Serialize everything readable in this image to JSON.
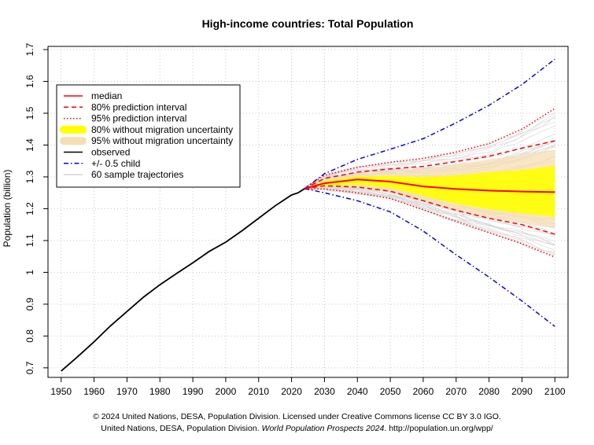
{
  "chart_data": {
    "type": "line",
    "title": "High-income countries: Total Population",
    "xlabel": "",
    "ylabel": "Population (billion)",
    "xlim": [
      1946,
      2104
    ],
    "ylim": [
      0.67,
      1.71
    ],
    "x_ticks": [
      1950,
      1960,
      1970,
      1980,
      1990,
      2000,
      2010,
      2020,
      2030,
      2040,
      2050,
      2060,
      2070,
      2080,
      2090,
      2100
    ],
    "y_ticks": [
      0.7,
      0.8,
      0.9,
      1.0,
      1.1,
      1.2,
      1.3,
      1.4,
      1.5,
      1.6,
      1.7
    ],
    "y_tick_labels": [
      "0.7",
      "0.8",
      "0.9",
      "1",
      "1.1",
      "1.2",
      "1.3",
      "1.4",
      "1.5",
      "1.6",
      "1.7"
    ],
    "grid": true,
    "legend_position": "top-left",
    "legend": [
      {
        "label": "median",
        "color": "#ff0000",
        "style": "solid"
      },
      {
        "label": "80% prediction interval",
        "color": "#ff0000",
        "style": "dashed"
      },
      {
        "label": "95% prediction interval",
        "color": "#ff0000",
        "style": "dotted"
      },
      {
        "label": "80% without migration uncertainty",
        "color": "#ffff00",
        "style": "band"
      },
      {
        "label": "95% without migration uncertainty",
        "color": "#f5deb3",
        "style": "band"
      },
      {
        "label": "observed",
        "color": "#000000",
        "style": "solid"
      },
      {
        "label": "+/- 0.5 child",
        "color": "#0000ff",
        "style": "dotdash"
      },
      {
        "label": "60 sample trajectories",
        "color": "#d3d3d3",
        "style": "thin"
      }
    ],
    "series": [
      {
        "name": "observed",
        "x": [
          1950,
          1955,
          1960,
          1965,
          1970,
          1975,
          1980,
          1985,
          1990,
          1995,
          2000,
          2005,
          2010,
          2015,
          2020,
          2022,
          2024
        ],
        "values": [
          0.69,
          0.735,
          0.782,
          0.832,
          0.877,
          0.922,
          0.961,
          0.996,
          1.03,
          1.066,
          1.095,
          1.131,
          1.17,
          1.209,
          1.243,
          1.25,
          1.263
        ]
      },
      {
        "name": "median",
        "x": [
          2024,
          2030,
          2040,
          2050,
          2060,
          2070,
          2080,
          2090,
          2100
        ],
        "values": [
          1.263,
          1.28,
          1.292,
          1.285,
          1.27,
          1.262,
          1.257,
          1.254,
          1.252
        ]
      },
      {
        "name": "80% prediction interval upper",
        "x": [
          2024,
          2030,
          2040,
          2050,
          2060,
          2070,
          2080,
          2090,
          2100
        ],
        "values": [
          1.263,
          1.295,
          1.315,
          1.325,
          1.333,
          1.348,
          1.365,
          1.39,
          1.413
        ]
      },
      {
        "name": "80% prediction interval lower",
        "x": [
          2024,
          2030,
          2040,
          2050,
          2060,
          2070,
          2080,
          2090,
          2100
        ],
        "values": [
          1.263,
          1.272,
          1.268,
          1.255,
          1.225,
          1.195,
          1.17,
          1.15,
          1.12
        ]
      },
      {
        "name": "95% prediction interval upper",
        "x": [
          2024,
          2030,
          2040,
          2050,
          2060,
          2070,
          2080,
          2090,
          2100
        ],
        "values": [
          1.263,
          1.305,
          1.33,
          1.346,
          1.358,
          1.378,
          1.405,
          1.45,
          1.515
        ]
      },
      {
        "name": "95% prediction interval lower",
        "x": [
          2024,
          2030,
          2040,
          2050,
          2060,
          2070,
          2080,
          2090,
          2100
        ],
        "values": [
          1.263,
          1.262,
          1.25,
          1.232,
          1.197,
          1.16,
          1.125,
          1.09,
          1.048
        ]
      },
      {
        "name": "+/- 0.5 child upper",
        "x": [
          2024,
          2030,
          2040,
          2050,
          2060,
          2070,
          2080,
          2090,
          2100
        ],
        "values": [
          1.263,
          1.31,
          1.355,
          1.387,
          1.42,
          1.47,
          1.525,
          1.59,
          1.67
        ]
      },
      {
        "name": "+/- 0.5 child lower",
        "x": [
          2024,
          2030,
          2040,
          2050,
          2060,
          2070,
          2080,
          2090,
          2100
        ],
        "values": [
          1.263,
          1.25,
          1.225,
          1.19,
          1.13,
          1.055,
          0.985,
          0.91,
          0.83
        ]
      },
      {
        "name": "95% without migration uncertainty",
        "x": [
          2024,
          2030,
          2040,
          2050,
          2060,
          2070,
          2080,
          2090,
          2100
        ],
        "upper": [
          1.263,
          1.292,
          1.31,
          1.318,
          1.325,
          1.34,
          1.355,
          1.37,
          1.385
        ],
        "lower": [
          1.263,
          1.268,
          1.266,
          1.252,
          1.222,
          1.192,
          1.17,
          1.155,
          1.14
        ]
      },
      {
        "name": "80% without migration uncertainty",
        "x": [
          2024,
          2030,
          2040,
          2050,
          2060,
          2070,
          2080,
          2090,
          2100
        ],
        "upper": [
          1.263,
          1.288,
          1.302,
          1.303,
          1.3,
          1.305,
          1.315,
          1.322,
          1.335
        ],
        "lower": [
          1.263,
          1.272,
          1.275,
          1.265,
          1.24,
          1.215,
          1.198,
          1.185,
          1.175
        ]
      }
    ]
  },
  "footer": {
    "line1": "© 2024 United Nations, DESA, Population Division. Licensed under Creative Commons license CC BY 3.0 IGO.",
    "line2_prefix": "United Nations, DESA, Population Division.",
    "line2_italic": "World Population Prospects 2024",
    "line2_suffix": ". http://population.un.org/wpp/"
  }
}
